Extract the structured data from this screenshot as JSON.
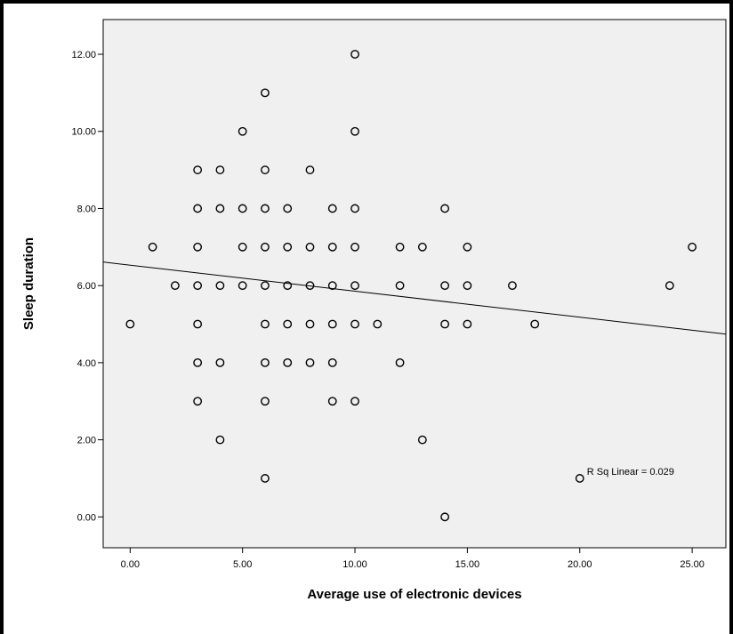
{
  "chart_data": {
    "type": "scatter",
    "title": "",
    "xlabel": "Average use of electronic devices",
    "ylabel": "Sleep duration",
    "xlim": [
      -1.2,
      26.5
    ],
    "ylim": [
      -0.8,
      12.9
    ],
    "xticks": [
      0,
      5,
      10,
      15,
      20,
      25
    ],
    "xtick_labels": [
      "0.00",
      "5.00",
      "10.00",
      "15.00",
      "20.00",
      "25.00"
    ],
    "yticks": [
      0,
      2,
      4,
      6,
      8,
      10,
      12
    ],
    "ytick_labels": [
      "0.00",
      "2.00",
      "4.00",
      "6.00",
      "8.00",
      "10.00",
      "12.00"
    ],
    "grid": false,
    "background": "#f0f0f0",
    "marker": "open-circle",
    "points": [
      {
        "x": 0,
        "y": 5
      },
      {
        "x": 1,
        "y": 7
      },
      {
        "x": 2,
        "y": 6
      },
      {
        "x": 3,
        "y": 9
      },
      {
        "x": 3,
        "y": 8
      },
      {
        "x": 3,
        "y": 7
      },
      {
        "x": 3,
        "y": 6
      },
      {
        "x": 3,
        "y": 5
      },
      {
        "x": 3,
        "y": 4
      },
      {
        "x": 3,
        "y": 3
      },
      {
        "x": 4,
        "y": 9
      },
      {
        "x": 4,
        "y": 8
      },
      {
        "x": 4,
        "y": 6
      },
      {
        "x": 4,
        "y": 4
      },
      {
        "x": 4,
        "y": 2
      },
      {
        "x": 5,
        "y": 10
      },
      {
        "x": 5,
        "y": 8
      },
      {
        "x": 5,
        "y": 7
      },
      {
        "x": 5,
        "y": 6
      },
      {
        "x": 6,
        "y": 11
      },
      {
        "x": 6,
        "y": 9
      },
      {
        "x": 6,
        "y": 8
      },
      {
        "x": 6,
        "y": 7
      },
      {
        "x": 6,
        "y": 6
      },
      {
        "x": 6,
        "y": 5
      },
      {
        "x": 6,
        "y": 4
      },
      {
        "x": 6,
        "y": 3
      },
      {
        "x": 6,
        "y": 1
      },
      {
        "x": 7,
        "y": 8
      },
      {
        "x": 7,
        "y": 7
      },
      {
        "x": 7,
        "y": 6
      },
      {
        "x": 7,
        "y": 5
      },
      {
        "x": 7,
        "y": 4
      },
      {
        "x": 8,
        "y": 9
      },
      {
        "x": 8,
        "y": 7
      },
      {
        "x": 8,
        "y": 6
      },
      {
        "x": 8,
        "y": 5
      },
      {
        "x": 8,
        "y": 4
      },
      {
        "x": 9,
        "y": 8
      },
      {
        "x": 9,
        "y": 7
      },
      {
        "x": 9,
        "y": 6
      },
      {
        "x": 9,
        "y": 5
      },
      {
        "x": 9,
        "y": 4
      },
      {
        "x": 9,
        "y": 3
      },
      {
        "x": 10,
        "y": 12
      },
      {
        "x": 10,
        "y": 10
      },
      {
        "x": 10,
        "y": 8
      },
      {
        "x": 10,
        "y": 7
      },
      {
        "x": 10,
        "y": 6
      },
      {
        "x": 10,
        "y": 5
      },
      {
        "x": 10,
        "y": 3
      },
      {
        "x": 11,
        "y": 5
      },
      {
        "x": 12,
        "y": 7
      },
      {
        "x": 12,
        "y": 6
      },
      {
        "x": 12,
        "y": 4
      },
      {
        "x": 13,
        "y": 7
      },
      {
        "x": 13,
        "y": 2
      },
      {
        "x": 14,
        "y": 8
      },
      {
        "x": 14,
        "y": 6
      },
      {
        "x": 14,
        "y": 5
      },
      {
        "x": 14,
        "y": 0
      },
      {
        "x": 15,
        "y": 7
      },
      {
        "x": 15,
        "y": 6
      },
      {
        "x": 15,
        "y": 5
      },
      {
        "x": 17,
        "y": 6
      },
      {
        "x": 18,
        "y": 5
      },
      {
        "x": 20,
        "y": 1
      },
      {
        "x": 24,
        "y": 6
      },
      {
        "x": 25,
        "y": 7
      }
    ],
    "fit_line": {
      "type": "linear",
      "intercept": 6.53,
      "slope": -0.0675
    },
    "annotation": {
      "text": "R Sq Linear = 0.029",
      "x": 20,
      "y": 1
    }
  }
}
